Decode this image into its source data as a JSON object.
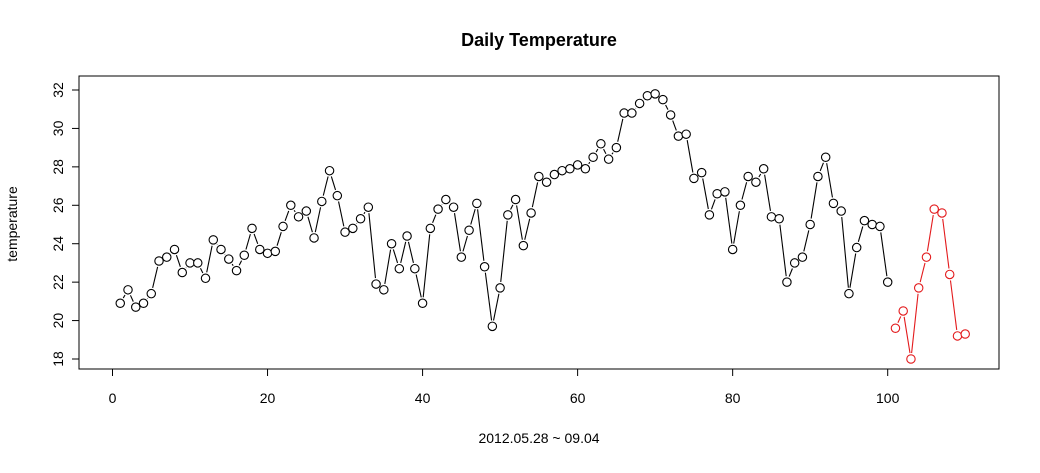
{
  "chart_data": {
    "type": "line",
    "title": "Daily Temperature",
    "xlabel": "2012.05.28 ~ 09.04",
    "ylabel": "temperature",
    "xlim": [
      0,
      115
    ],
    "ylim": [
      18,
      32
    ],
    "x_ticks": [
      0,
      20,
      40,
      60,
      80,
      100
    ],
    "y_ticks": [
      18,
      20,
      22,
      24,
      26,
      28,
      30,
      32
    ],
    "grid": false,
    "legend": "none",
    "line_style": "both points and lines (R type='b')",
    "series": [
      {
        "color": "#000000",
        "x": [
          1,
          2,
          3,
          4,
          5,
          6,
          7,
          8,
          9,
          10,
          11,
          12,
          13,
          14,
          15,
          16,
          17,
          18,
          19,
          20,
          21,
          22,
          23,
          24,
          25,
          26,
          27,
          28,
          29,
          30,
          31,
          32,
          33,
          34,
          35,
          36,
          37,
          38,
          39,
          40,
          41,
          42,
          43,
          44,
          45,
          46,
          47,
          48,
          49,
          50,
          51,
          52,
          53,
          54,
          55,
          56,
          57,
          58,
          59,
          60,
          61,
          62,
          63,
          64,
          65,
          66,
          67,
          68,
          69,
          70,
          71,
          72,
          73,
          74,
          75,
          76,
          77,
          78,
          79,
          80,
          81,
          82,
          83,
          84,
          85,
          86,
          87,
          88,
          89,
          90,
          91,
          92,
          93,
          94,
          95,
          96,
          97,
          98,
          99,
          100
        ],
        "y": [
          20.9,
          21.6,
          20.7,
          20.9,
          21.4,
          23.1,
          23.3,
          23.7,
          22.5,
          23.0,
          23.0,
          22.2,
          24.2,
          23.7,
          23.2,
          22.6,
          23.4,
          24.8,
          23.7,
          23.5,
          23.6,
          24.9,
          26.0,
          25.4,
          25.7,
          24.3,
          26.2,
          27.8,
          26.5,
          24.6,
          24.8,
          25.3,
          25.9,
          21.9,
          21.6,
          24.0,
          22.7,
          24.4,
          22.7,
          20.9,
          24.8,
          25.8,
          26.3,
          25.9,
          23.3,
          24.7,
          26.1,
          22.8,
          19.7,
          21.7,
          25.5,
          26.3,
          23.9,
          25.6,
          27.5,
          27.2,
          27.6,
          27.8,
          27.9,
          28.1,
          27.9,
          28.5,
          29.2,
          28.4,
          29.0,
          30.8,
          30.8,
          31.3,
          31.7,
          31.8,
          31.5,
          30.7,
          29.6,
          29.7,
          27.4,
          27.7,
          25.5,
          26.6,
          26.7,
          23.7,
          26.0,
          27.5,
          27.2,
          27.9,
          25.4,
          25.3,
          22.0,
          23.0,
          23.3,
          25.0,
          27.5,
          28.5,
          26.1,
          25.7,
          21.4,
          23.8,
          25.2,
          25.0,
          24.9,
          22.0
        ]
      },
      {
        "color": "#e31a1c",
        "x": [
          101,
          102,
          103,
          104,
          105,
          106,
          107,
          108,
          109,
          110
        ],
        "y": [
          19.6,
          20.5,
          18.0,
          21.7,
          23.3,
          25.8,
          25.6,
          22.4,
          19.2,
          19.3
        ]
      }
    ]
  }
}
